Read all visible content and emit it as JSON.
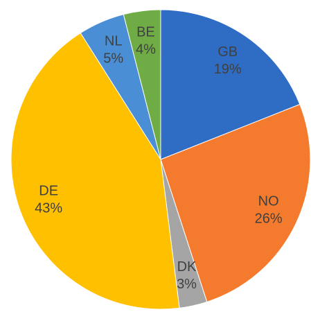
{
  "chart_data": {
    "type": "pie",
    "categories": [
      "GB",
      "NO",
      "DK",
      "DE",
      "NL",
      "BE"
    ],
    "values": [
      19,
      26,
      3,
      43,
      5,
      4
    ],
    "value_labels": [
      "19%",
      "26%",
      "3%",
      "43%",
      "5%",
      "4%"
    ],
    "colors": [
      "#2f6cc4",
      "#f47b2d",
      "#a5a5a5",
      "#ffc000",
      "#4a8fd6",
      "#6fac46"
    ]
  }
}
